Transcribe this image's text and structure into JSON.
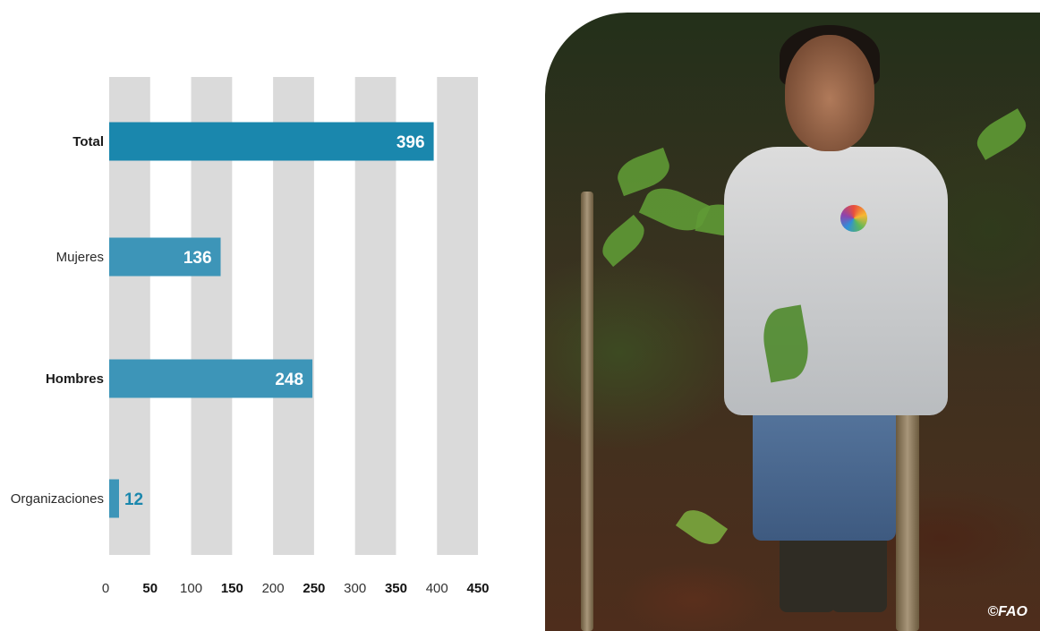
{
  "chart_data": {
    "type": "bar",
    "orientation": "horizontal",
    "categories": [
      "Total",
      "Mujeres",
      "Hombres",
      "Organizaciones"
    ],
    "values": [
      396,
      136,
      248,
      12
    ],
    "category_bold": [
      true,
      false,
      true,
      false
    ],
    "xlim": [
      0,
      450
    ],
    "ticks": [
      0,
      50,
      100,
      150,
      200,
      250,
      300,
      350,
      400,
      450
    ],
    "tick_labels": [
      "0",
      "50",
      "100",
      "150",
      "200",
      "250",
      "300",
      "350",
      "400",
      "450"
    ],
    "tick_bold": [
      false,
      true,
      false,
      true,
      false,
      true,
      false,
      true,
      false,
      true
    ],
    "grid": "alternating-bands",
    "title": "",
    "xlabel": "",
    "ylabel": ""
  },
  "colors": {
    "bar_total": "#1a87ad",
    "bar_others": "#3d95b8",
    "grid_band": "#dadada",
    "value_label_inside": "#ffffff",
    "value_label_outside": "#1a87ad"
  },
  "photo": {
    "credit": "©FAO",
    "icon": "photo-woman-forest"
  }
}
